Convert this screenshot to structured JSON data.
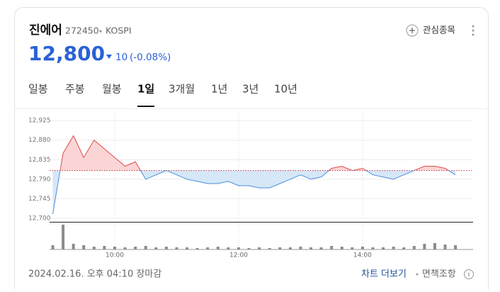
{
  "header": {
    "name": "진에어",
    "code": "272450",
    "market": "KOSPI",
    "watch": "관심종목"
  },
  "quote": {
    "price": "12,800",
    "change": "10",
    "change_pct": "(-0.08%)"
  },
  "tabs": [
    "일봉",
    "주봉",
    "월봉",
    "1일",
    "3개월",
    "1년",
    "3년",
    "10년"
  ],
  "active_tab": 3,
  "footer": {
    "timestamp": "2024.02.16. 오후 04:10 장마감",
    "more": "차트 더보기",
    "disclaimer": "면책조항"
  },
  "chart_data": {
    "type": "line",
    "x": [
      "09:00",
      "09:10",
      "09:20",
      "09:30",
      "09:40",
      "09:50",
      "10:00",
      "10:10",
      "10:20",
      "10:30",
      "10:40",
      "10:50",
      "11:00",
      "11:10",
      "11:20",
      "11:30",
      "11:40",
      "11:50",
      "12:00",
      "12:10",
      "12:20",
      "12:30",
      "12:40",
      "12:50",
      "13:00",
      "13:10",
      "13:20",
      "13:30",
      "13:40",
      "13:50",
      "14:00",
      "14:10",
      "14:20",
      "14:30",
      "14:40",
      "14:50",
      "15:00",
      "15:10",
      "15:20",
      "15:30"
    ],
    "series": [
      {
        "name": "price",
        "color": "#e0494a",
        "values": [
          12710,
          12850,
          12890,
          12840,
          12880,
          12860,
          12840,
          12820,
          12830,
          12790,
          12800,
          12810,
          12800,
          12790,
          12785,
          12780,
          12780,
          12785,
          12775,
          12775,
          12770,
          12770,
          12780,
          12790,
          12800,
          12790,
          12795,
          12815,
          12820,
          12810,
          12815,
          12800,
          12795,
          12790,
          12800,
          12810,
          12820,
          12820,
          12815,
          12800
        ]
      }
    ],
    "volume": {
      "color": "#8c8c8c",
      "values": [
        6,
        35,
        8,
        6,
        4,
        5,
        4,
        3,
        4,
        5,
        3,
        4,
        3,
        3,
        2,
        3,
        4,
        3,
        3,
        2,
        3,
        2,
        3,
        3,
        4,
        3,
        3,
        5,
        4,
        3,
        4,
        3,
        3,
        4,
        3,
        5,
        8,
        9,
        7,
        6
      ]
    },
    "baseline": 12810,
    "ylim": [
      12700,
      12935
    ],
    "yticks": [
      {
        "value": 12700,
        "label": "12,700"
      },
      {
        "value": 12745,
        "label": "12,745"
      },
      {
        "value": 12790,
        "label": "12,790"
      },
      {
        "value": 12835,
        "label": "12,835"
      },
      {
        "value": 12880,
        "label": "12,880"
      },
      {
        "value": 12925,
        "label": "12,925"
      }
    ],
    "xticks": [
      "10:00",
      "12:00",
      "14:00"
    ],
    "grid": true
  }
}
